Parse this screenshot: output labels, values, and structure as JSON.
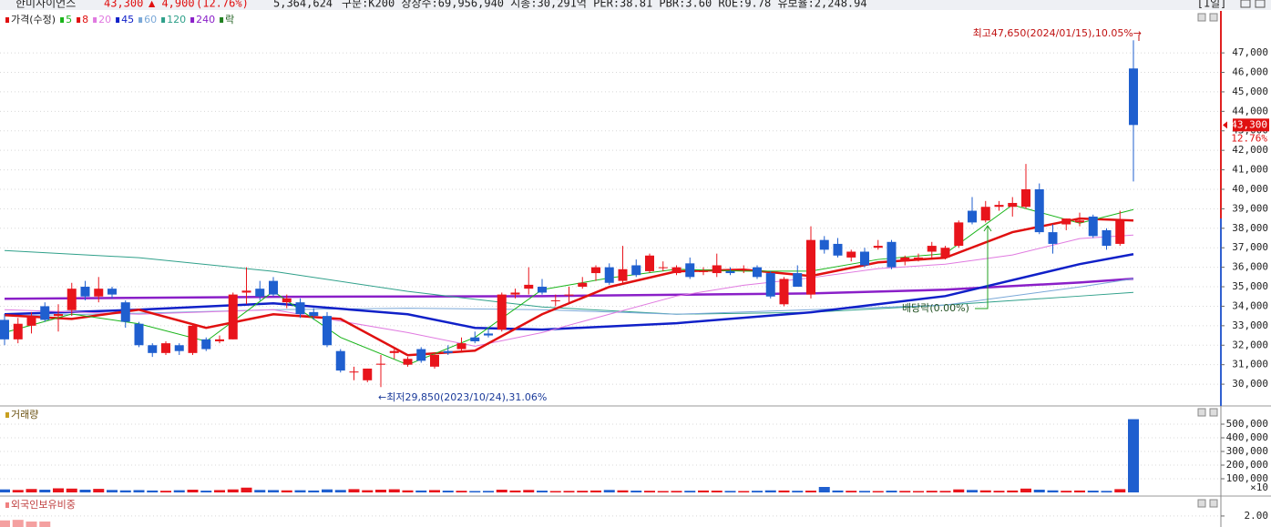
{
  "header": {
    "name": "한미사이언스",
    "price": "43,300",
    "change": "▲ 4,900",
    "rate": "(12.76%)",
    "volume": "5,364,624",
    "info": "구분:K200 상장수:69,956,940 시총:30,291억 PER:38.81 PBR:3.60 ROE:9.78 유보율:2,248.94",
    "period": "[1일]"
  },
  "chart_data": [
    {
      "type": "candlestick",
      "legend_title": "가격(수정)",
      "legend_suffix": "락",
      "up_color": "#e8141b",
      "down_color": "#1f5fcf",
      "ohlc": [
        [
          33300,
          33600,
          32000,
          32300
        ],
        [
          32300,
          33400,
          32100,
          33100
        ],
        [
          33000,
          33700,
          32600,
          33500
        ],
        [
          34000,
          34200,
          33200,
          33300
        ],
        [
          33500,
          34100,
          32700,
          33600
        ],
        [
          33800,
          35200,
          33500,
          34900
        ],
        [
          35000,
          35300,
          34300,
          34500
        ],
        [
          34500,
          35500,
          34200,
          34900
        ],
        [
          34900,
          35000,
          34400,
          34600
        ],
        [
          34200,
          34300,
          32900,
          33200
        ],
        [
          33100,
          33200,
          31900,
          32000
        ],
        [
          32000,
          32100,
          31400,
          31600
        ],
        [
          31600,
          32200,
          31500,
          32100
        ],
        [
          32000,
          32100,
          31500,
          31700
        ],
        [
          31600,
          33100,
          31500,
          33000
        ],
        [
          32300,
          32400,
          31700,
          31800
        ],
        [
          32200,
          32500,
          32100,
          32300
        ],
        [
          32300,
          34700,
          32300,
          34600
        ],
        [
          34700,
          36000,
          34100,
          34800
        ],
        [
          34900,
          35300,
          34300,
          34500
        ],
        [
          35300,
          35500,
          34500,
          34600
        ],
        [
          34200,
          34600,
          33900,
          34400
        ],
        [
          34200,
          34400,
          33400,
          33600
        ],
        [
          33700,
          33900,
          33300,
          33500
        ],
        [
          33500,
          33700,
          31900,
          32000
        ],
        [
          31700,
          31800,
          30600,
          30700
        ],
        [
          30600,
          30900,
          30200,
          30650
        ],
        [
          30200,
          30800,
          30100,
          30800
        ],
        [
          31000,
          31500,
          29850,
          31050
        ],
        [
          31600,
          31900,
          31300,
          31700
        ],
        [
          31000,
          31400,
          30900,
          31300
        ],
        [
          31800,
          31900,
          31100,
          31200
        ],
        [
          30900,
          31600,
          30800,
          31500
        ],
        [
          31700,
          32000,
          31500,
          31600
        ],
        [
          31800,
          32400,
          31700,
          32100
        ],
        [
          32400,
          32700,
          32100,
          32200
        ],
        [
          32600,
          32800,
          32400,
          32500
        ],
        [
          32800,
          34700,
          32700,
          34600
        ],
        [
          34600,
          34900,
          34400,
          34700
        ],
        [
          34900,
          36000,
          34600,
          35100
        ],
        [
          35000,
          35400,
          34600,
          34700
        ],
        [
          34300,
          34600,
          34000,
          34300
        ],
        [
          34600,
          35000,
          34200,
          34600
        ],
        [
          35000,
          35500,
          34900,
          35200
        ],
        [
          35700,
          36100,
          35300,
          36000
        ],
        [
          36000,
          36200,
          35100,
          35200
        ],
        [
          35300,
          37100,
          35200,
          35900
        ],
        [
          36100,
          36400,
          35500,
          35600
        ],
        [
          35800,
          36700,
          35700,
          36600
        ],
        [
          36000,
          36300,
          35800,
          36000
        ],
        [
          35700,
          36100,
          35600,
          36000
        ],
        [
          36200,
          36500,
          35400,
          35500
        ],
        [
          35800,
          36000,
          35600,
          35800
        ],
        [
          35700,
          36700,
          35500,
          36100
        ],
        [
          35800,
          36000,
          35600,
          35700
        ],
        [
          35900,
          36100,
          35700,
          35900
        ],
        [
          36000,
          36100,
          35400,
          35500
        ],
        [
          35700,
          35800,
          34400,
          34500
        ],
        [
          34100,
          35500,
          34000,
          35400
        ],
        [
          35700,
          36100,
          35000,
          35000
        ],
        [
          34600,
          38100,
          34400,
          37400
        ],
        [
          37400,
          37600,
          36700,
          36900
        ],
        [
          37200,
          37500,
          36500,
          36600
        ],
        [
          36500,
          36900,
          36300,
          36800
        ],
        [
          36800,
          37000,
          36000,
          36100
        ],
        [
          37000,
          37400,
          36900,
          37100
        ],
        [
          37300,
          37400,
          35900,
          36000
        ],
        [
          36300,
          36600,
          36100,
          36500
        ],
        [
          36400,
          36700,
          36300,
          36500
        ],
        [
          36800,
          37300,
          36500,
          37100
        ],
        [
          36500,
          37100,
          36400,
          37000
        ],
        [
          37100,
          38400,
          37000,
          38300
        ],
        [
          38900,
          39600,
          38200,
          38300
        ],
        [
          38400,
          39400,
          38300,
          39100
        ],
        [
          39100,
          39400,
          38900,
          39200
        ],
        [
          39100,
          39600,
          38600,
          39300
        ],
        [
          39100,
          41300,
          39000,
          40000
        ],
        [
          40000,
          40300,
          37700,
          37800
        ],
        [
          37800,
          38200,
          36700,
          37200
        ],
        [
          38200,
          38500,
          37900,
          38500
        ],
        [
          38300,
          38800,
          38100,
          38400
        ],
        [
          38600,
          38700,
          37500,
          37600
        ],
        [
          37900,
          38000,
          36900,
          37100
        ],
        [
          37200,
          38900,
          37100,
          38400
        ],
        [
          46200,
          47650,
          40400,
          43300
        ]
      ],
      "moving_averages": [
        {
          "name": "5",
          "color": "#19b419",
          "x": [
            0,
            5,
            10,
            15,
            20,
            25,
            30,
            35,
            40,
            45,
            50,
            55,
            60,
            65,
            70,
            75,
            80,
            84
          ],
          "values": [
            32650,
            33600,
            33100,
            32200,
            34760,
            32400,
            31000,
            32400,
            34850,
            35450,
            35900,
            35800,
            35800,
            36400,
            36700,
            39200,
            38260,
            38960
          ]
        },
        {
          "name": "8",
          "color": "#e01010",
          "x": [
            0,
            5,
            10,
            15,
            20,
            25,
            30,
            35,
            40,
            45,
            50,
            55,
            60,
            65,
            70,
            75,
            80,
            84
          ],
          "values": [
            33540,
            33350,
            33820,
            32890,
            33590,
            33350,
            31490,
            31720,
            33590,
            34990,
            35790,
            35880,
            35550,
            36250,
            36490,
            37800,
            38500,
            38400
          ]
        },
        {
          "name": "20",
          "color": "#e07ae0",
          "x": [
            0,
            10,
            20,
            30,
            35,
            40,
            45,
            50,
            55,
            60,
            65,
            70,
            75,
            80,
            84
          ],
          "values": [
            33820,
            33590,
            33820,
            32650,
            31950,
            32650,
            33590,
            34520,
            35080,
            35460,
            35930,
            36160,
            36630,
            37470,
            37650
          ]
        },
        {
          "name": "45",
          "color": "#1020c8",
          "x": [
            0,
            10,
            20,
            30,
            35,
            40,
            50,
            60,
            70,
            80,
            84
          ],
          "values": [
            33590,
            33820,
            34150,
            33590,
            32890,
            32800,
            33130,
            33690,
            34520,
            36160,
            36670
          ]
        },
        {
          "name": "60",
          "color": "#7aa8d8",
          "x": [
            0,
            10,
            20,
            30,
            40,
            50,
            60,
            70,
            80,
            84
          ],
          "values": [
            33500,
            33640,
            33820,
            33900,
            33820,
            33590,
            33820,
            34060,
            34990,
            35410
          ]
        },
        {
          "name": "120",
          "color": "#2fa08a",
          "x": [
            0,
            10,
            20,
            30,
            40,
            50,
            60,
            70,
            80,
            84
          ],
          "values": [
            36860,
            36490,
            35790,
            34760,
            33960,
            33590,
            33690,
            34060,
            34520,
            34710
          ]
        },
        {
          "name": "240",
          "color": "#8a1fc8",
          "x": [
            0,
            20,
            40,
            60,
            70,
            80,
            84
          ],
          "values": [
            34380,
            34480,
            34520,
            34660,
            34850,
            35220,
            35410
          ]
        }
      ],
      "ylim": [
        28930,
        49060
      ],
      "yticks": [
        {
          "value": 30000,
          "label": "30,000"
        },
        {
          "value": 31000,
          "label": "31,000"
        },
        {
          "value": 32000,
          "label": "32,000"
        },
        {
          "value": 33000,
          "label": "33,000"
        },
        {
          "value": 34000,
          "label": "34,000"
        },
        {
          "value": 35000,
          "label": "35,000"
        },
        {
          "value": 36000,
          "label": "36,000"
        },
        {
          "value": 37000,
          "label": "37,000"
        },
        {
          "value": 38000,
          "label": "38,000"
        },
        {
          "value": 39000,
          "label": "39,000"
        },
        {
          "value": 40000,
          "label": "40,000"
        },
        {
          "value": 41000,
          "label": "41,000"
        },
        {
          "value": 42000,
          "label": "42,000"
        },
        {
          "value": 43000,
          "label": "43,000"
        },
        {
          "value": 44000,
          "label": "44,000"
        },
        {
          "value": 45000,
          "label": "45,000"
        },
        {
          "value": 46000,
          "label": "46,000"
        },
        {
          "value": 47000,
          "label": "47,000"
        }
      ],
      "high_annotation": "최고47,650(2024/01/15),10.05%→",
      "low_annotation": "←최저29,850(2023/10/24),31.06%",
      "dividend_annotation": "배당락(0.00%)",
      "last_rate": "12.76%"
    },
    {
      "type": "bar",
      "title": "거래량",
      "unit_label": "×10",
      "values": [
        22000,
        18000,
        25000,
        20000,
        30000,
        28000,
        20000,
        26000,
        18000,
        15000,
        17000,
        14000,
        12000,
        16000,
        20000,
        13000,
        17000,
        22000,
        35000,
        18000,
        17000,
        15000,
        16000,
        14000,
        22000,
        18000,
        24000,
        16000,
        20000,
        23000,
        15000,
        14000,
        17000,
        13000,
        12000,
        10000,
        11000,
        20000,
        14000,
        18000,
        13000,
        10000,
        11000,
        12000,
        14000,
        18000,
        15000,
        13000,
        12000,
        10000,
        11000,
        12000,
        14000,
        13000,
        11000,
        10000,
        12000,
        15000,
        14000,
        12000,
        13000,
        40000,
        14000,
        12000,
        11000,
        10000,
        13000,
        11000,
        10000,
        12000,
        11000,
        22000,
        18000,
        15000,
        12000,
        14000,
        28000,
        20000,
        15000,
        12000,
        14000,
        13000,
        11000,
        24000,
        536462
      ],
      "ylim": [
        0,
        620000
      ],
      "yticks": [
        {
          "value": 100000,
          "label": "100,000"
        },
        {
          "value": 200000,
          "label": "200,000"
        },
        {
          "value": 300000,
          "label": "300,000"
        },
        {
          "value": 400000,
          "label": "400,000"
        },
        {
          "value": 500000,
          "label": "500,000"
        }
      ]
    },
    {
      "type": "bar",
      "title": "외국인보유비중",
      "color": "#f4a0a0",
      "values": [
        1.92,
        1.93,
        1.9,
        1.9
      ],
      "ylim": [
        1.8,
        2.33
      ],
      "yticks": [
        {
          "value": 2,
          "label": "2.00"
        }
      ]
    }
  ]
}
